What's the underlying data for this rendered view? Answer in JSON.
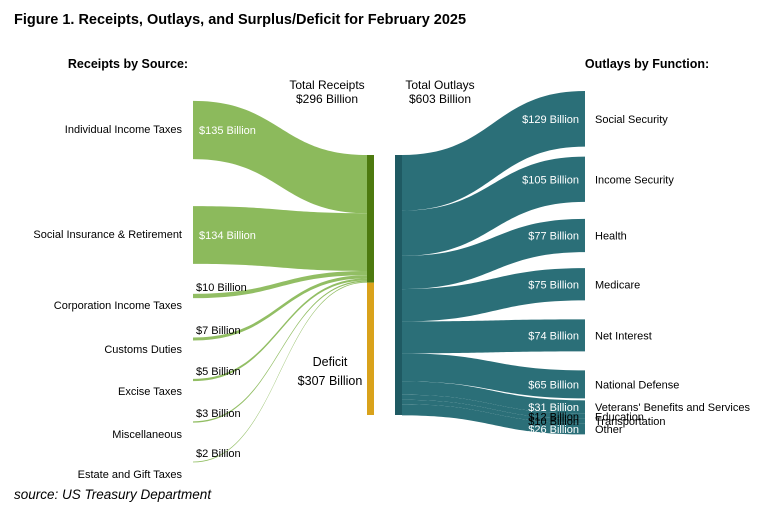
{
  "title": "Figure 1. Receipts, Outlays, and Surplus/Deficit for February 2025",
  "receipts_heading": "Receipts by Source:",
  "outlays_heading": "Outlays by Function:",
  "total_receipts": {
    "line1": "Total Receipts",
    "line2": "$296 Billion"
  },
  "total_outlays": {
    "line1": "Total Outlays",
    "line2": "$603 Billion"
  },
  "deficit": {
    "line1": "Deficit",
    "line2": "$307 Billion"
  },
  "source": "source: US Treasury Department",
  "colors": {
    "receipts": "#8cba5c",
    "receipts_bar": "#4d7a0f",
    "deficit": "#d9a21b",
    "outlays": "#2b6f78",
    "outlays_bar": "#1f5a63"
  },
  "chart_data": {
    "type": "sankey",
    "unit": "Billion",
    "receipts": [
      {
        "name": "Individual Income Taxes",
        "value": 135,
        "label": "$135 Billion"
      },
      {
        "name": "Social Insurance & Retirement",
        "value": 134,
        "label": "$134 Billion"
      },
      {
        "name": "Corporation Income Taxes",
        "value": 10,
        "label": "$10 Billion"
      },
      {
        "name": "Customs Duties",
        "value": 7,
        "label": "$7 Billion"
      },
      {
        "name": "Excise Taxes",
        "value": 5,
        "label": "$5 Billion"
      },
      {
        "name": "Miscellaneous",
        "value": 3,
        "label": "$3 Billion"
      },
      {
        "name": "Estate and Gift Taxes",
        "value": 2,
        "label": "$2 Billion"
      }
    ],
    "outlays": [
      {
        "name": "Social Security",
        "value": 129,
        "label": "$129 Billion"
      },
      {
        "name": "Income Security",
        "value": 105,
        "label": "$105 Billion"
      },
      {
        "name": "Health",
        "value": 77,
        "label": "$77 Billion"
      },
      {
        "name": "Medicare",
        "value": 75,
        "label": "$75 Billion"
      },
      {
        "name": "Net Interest",
        "value": 74,
        "label": "$74 Billion"
      },
      {
        "name": "National Defense",
        "value": 65,
        "label": "$65 Billion"
      },
      {
        "name": "Veterans' Benefits and Services",
        "value": 31,
        "label": "$31 Billion"
      },
      {
        "name": "Education",
        "value": 12,
        "label": "$12 Billion"
      },
      {
        "name": "Transportation",
        "value": 10,
        "label": "$10 Billion"
      },
      {
        "name": "Other",
        "value": 26,
        "label": "$26 Billion"
      }
    ],
    "total_receipts": 296,
    "total_outlays": 603,
    "deficit": 307
  }
}
